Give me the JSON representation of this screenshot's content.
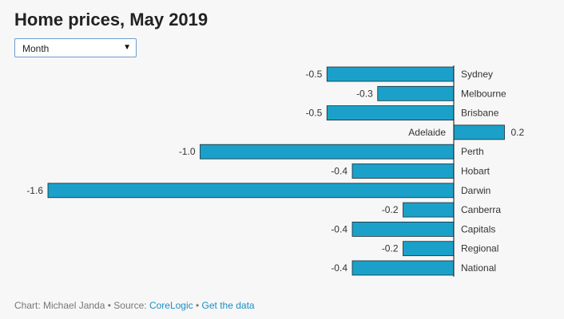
{
  "title": "Home prices, May 2019",
  "dropdown": {
    "selected": "Month",
    "arrow_icon": "triangle-down-icon"
  },
  "chart_data": {
    "type": "bar",
    "orientation": "horizontal",
    "categories": [
      "Sydney",
      "Melbourne",
      "Brisbane",
      "Adelaide",
      "Perth",
      "Hobart",
      "Darwin",
      "Canberra",
      "Capitals",
      "Regional",
      "National"
    ],
    "values": [
      -0.5,
      -0.3,
      -0.5,
      0.2,
      -1.0,
      -0.4,
      -1.6,
      -0.2,
      -0.4,
      -0.2,
      -0.4
    ],
    "value_labels": [
      "-0.5",
      "-0.3",
      "-0.5",
      "0.2",
      "-1.0",
      "-0.4",
      "-1.6",
      "-0.2",
      "-0.4",
      "-0.2",
      "-0.4"
    ],
    "xlim": [
      -1.6,
      0.2
    ],
    "bar_color": "#1ba1c9",
    "bar_stroke": "#1a2a33",
    "axis_color": "#111111",
    "title": "Home prices, May 2019",
    "xlabel": "",
    "ylabel": ""
  },
  "footer": {
    "prefix": "Chart: Michael Janda • Source: ",
    "source_link": "CoreLogic",
    "separator": " • ",
    "data_link": "Get the data"
  }
}
